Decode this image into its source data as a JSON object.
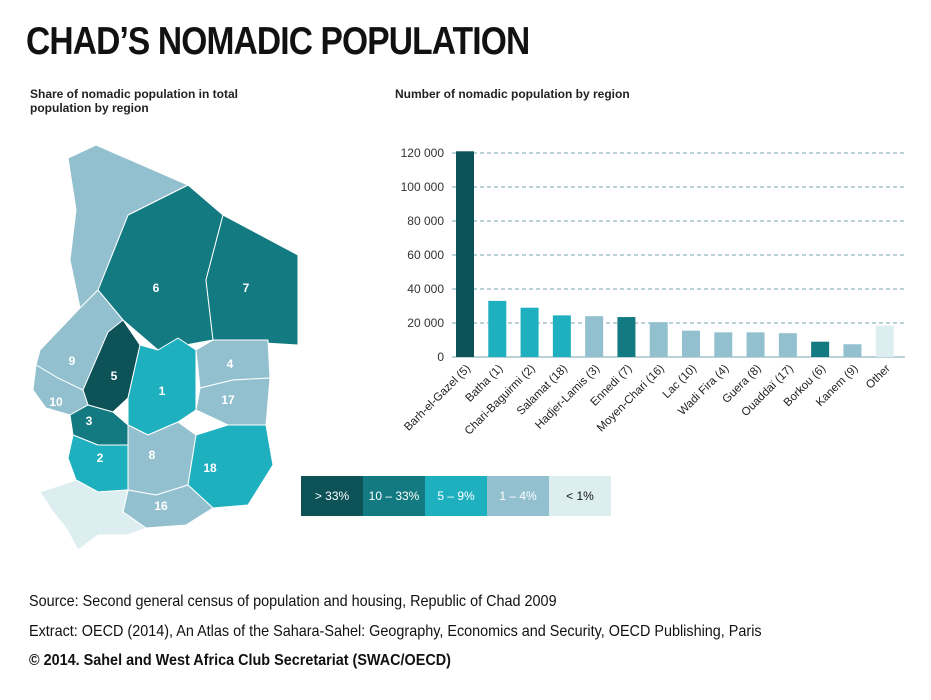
{
  "title": "CHAD’S NOMADIC POPULATION",
  "map": {
    "subtitle": "Share of nomadic population in total population by region",
    "region_labels": [
      "6",
      "7",
      "9",
      "5",
      "1",
      "4",
      "10",
      "17",
      "3",
      "2",
      "8",
      "18",
      "16"
    ]
  },
  "legend": {
    "items": [
      {
        "label": "> 33%",
        "color": "#0c5257"
      },
      {
        "label": "10 – 33%",
        "color": "#127a80"
      },
      {
        "label": "5 – 9%",
        "color": "#1fb0c0"
      },
      {
        "label": "1 – 4%",
        "color": "#93c0cf"
      },
      {
        "label": "< 1%",
        "color": "#ddeef0"
      }
    ]
  },
  "chart_data": {
    "type": "bar",
    "title": "Number of nomadic population by region",
    "categories": [
      "Barh-el-Gazel (5)",
      "Batha (1)",
      "Chari-Baguirmi (2)",
      "Salamat (18)",
      "Hadjer-Lamis (3)",
      "Ennedi (7)",
      "Moyen-Chari (16)",
      "Lac (10)",
      "Wadi Fira (4)",
      "Guera (8)",
      "Ouaddaï (17)",
      "Borkou (6)",
      "Kanem (9)",
      "Other"
    ],
    "values": [
      121000,
      33000,
      29000,
      24500,
      24000,
      23500,
      20500,
      15500,
      14500,
      14500,
      14000,
      9000,
      7500,
      18500
    ],
    "colors": [
      "#0c5257",
      "#1fb0c0",
      "#1fb0c0",
      "#1fb0c0",
      "#93c0cf",
      "#127a80",
      "#93c0cf",
      "#93c0cf",
      "#93c0cf",
      "#93c0cf",
      "#93c0cf",
      "#127a80",
      "#93c0cf",
      "#ddeef0"
    ],
    "yticks": [
      "0",
      "20 000",
      "40 000",
      "60 000",
      "80 000",
      "100 000",
      "120 000"
    ],
    "ylim": [
      0,
      120000
    ],
    "grid": true
  },
  "footer": {
    "source": "Source: Second general census of population and housing, Republic of Chad 2009",
    "extract": "Extract: OECD (2014), An Atlas of the Sahara-Sahel: Geography, Economics  and Security, OECD Publishing, Paris",
    "copyright": "© 2014. Sahel and West Africa Club Secretariat (SWAC/OECD)"
  }
}
